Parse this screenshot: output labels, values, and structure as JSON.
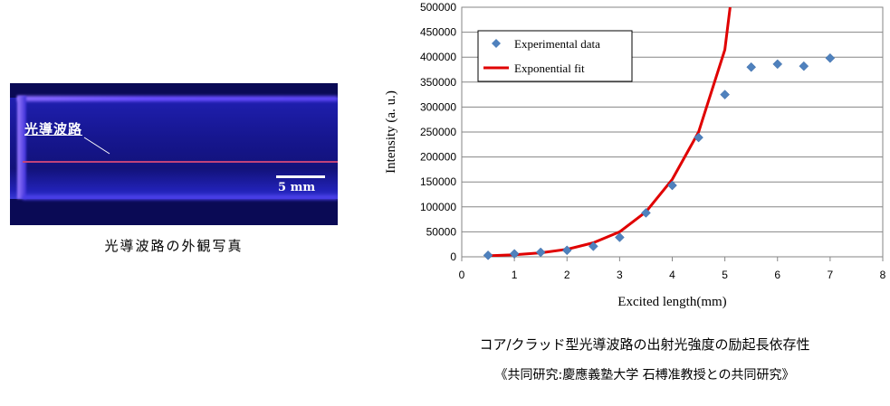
{
  "photo": {
    "label": "光導波路",
    "scale_label": "5 mm",
    "caption": "光導波路の外観写真"
  },
  "chart_caption": "コア/クラッド型光導波路の出射光強度の励起長依存性",
  "collaboration_note": "《共同研究:慶應義塾大学 石榑准教授との共同研究》",
  "chart_data": {
    "type": "scatter",
    "xlabel": "Excited length(mm)",
    "ylabel": "Intensity (a. u.)",
    "xlim": [
      0,
      8
    ],
    "ylim": [
      0,
      500000
    ],
    "x_ticks": [
      0,
      1,
      2,
      3,
      4,
      5,
      6,
      7,
      8
    ],
    "y_ticks": [
      0,
      50000,
      100000,
      150000,
      200000,
      250000,
      300000,
      350000,
      400000,
      450000,
      500000
    ],
    "grid": true,
    "legend_position": "top-left",
    "series": [
      {
        "name": "Experimental data",
        "kind": "markers",
        "marker": "diamond",
        "color": "#4f81bd",
        "x": [
          0.5,
          1.0,
          1.5,
          2.0,
          2.5,
          3.0,
          3.5,
          4.0,
          4.5,
          5.0,
          5.5,
          6.0,
          6.5,
          7.0
        ],
        "y": [
          3000,
          6000,
          9000,
          13000,
          21000,
          39000,
          88000,
          143000,
          239000,
          325000,
          380000,
          386000,
          382000,
          398000
        ]
      },
      {
        "name": "Exponential fit",
        "kind": "line",
        "color": "#e00000",
        "x": [
          0.5,
          1.0,
          1.5,
          2.0,
          2.5,
          3.0,
          3.5,
          4.0,
          4.5,
          5.0,
          5.1
        ],
        "y": [
          2000,
          4000,
          8000,
          15000,
          28000,
          50000,
          90000,
          155000,
          250000,
          415000,
          500000
        ]
      }
    ]
  }
}
